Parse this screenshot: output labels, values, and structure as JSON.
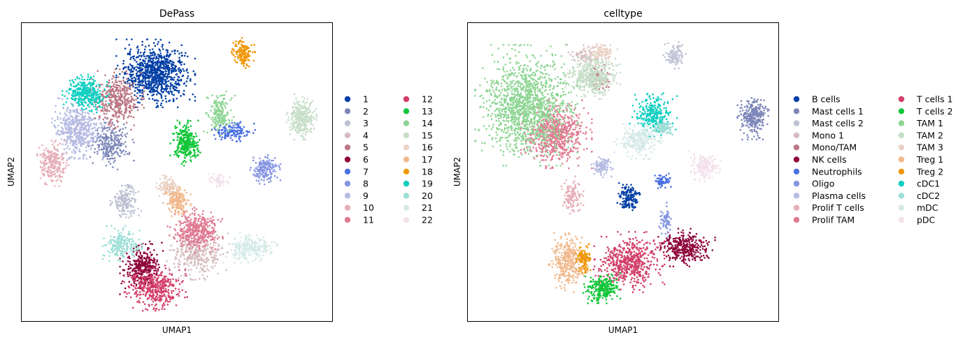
{
  "chart_data": [
    {
      "type": "scatter",
      "title": "DePass",
      "xlabel": "UMAP1",
      "ylabel": "UMAP2",
      "xticks": false,
      "yticks": false,
      "legend_position": "right",
      "legend_columns": 2,
      "legend": [
        {
          "label": "1",
          "color": "#023fa5"
        },
        {
          "label": "2",
          "color": "#7d87b9"
        },
        {
          "label": "3",
          "color": "#bec1d4"
        },
        {
          "label": "4",
          "color": "#d6bcc0"
        },
        {
          "label": "5",
          "color": "#bb7784"
        },
        {
          "label": "6",
          "color": "#8e063b"
        },
        {
          "label": "7",
          "color": "#4a6fe3"
        },
        {
          "label": "8",
          "color": "#8595e1"
        },
        {
          "label": "9",
          "color": "#b5bbe3"
        },
        {
          "label": "10",
          "color": "#e6afb9"
        },
        {
          "label": "11",
          "color": "#e07b91"
        },
        {
          "label": "12",
          "color": "#d33f6a"
        },
        {
          "label": "13",
          "color": "#11c638"
        },
        {
          "label": "14",
          "color": "#8dd593"
        },
        {
          "label": "15",
          "color": "#c6dec7"
        },
        {
          "label": "16",
          "color": "#ead3c6"
        },
        {
          "label": "17",
          "color": "#f0b98d"
        },
        {
          "label": "18",
          "color": "#ef9708"
        },
        {
          "label": "19",
          "color": "#0fcfc0"
        },
        {
          "label": "20",
          "color": "#9cded6"
        },
        {
          "label": "21",
          "color": "#d5eae7"
        },
        {
          "label": "22",
          "color": "#f3e1eb"
        }
      ],
      "clusters": [
        {
          "label": "1",
          "cx": 0.43,
          "cy": 0.84,
          "rx": 0.1,
          "ry": 0.09,
          "n": 900
        },
        {
          "label": "2",
          "cx": 0.28,
          "cy": 0.6,
          "rx": 0.06,
          "ry": 0.07,
          "n": 250
        },
        {
          "label": "3",
          "cx": 0.33,
          "cy": 0.4,
          "rx": 0.04,
          "ry": 0.05,
          "n": 180
        },
        {
          "label": "4",
          "cx": 0.57,
          "cy": 0.22,
          "rx": 0.08,
          "ry": 0.07,
          "n": 350
        },
        {
          "label": "5",
          "cx": 0.3,
          "cy": 0.75,
          "rx": 0.07,
          "ry": 0.08,
          "n": 400
        },
        {
          "label": "6",
          "cx": 0.39,
          "cy": 0.17,
          "rx": 0.06,
          "ry": 0.07,
          "n": 350
        },
        {
          "label": "7",
          "cx": 0.68,
          "cy": 0.64,
          "rx": 0.06,
          "ry": 0.03,
          "n": 150
        },
        {
          "label": "8",
          "cx": 0.79,
          "cy": 0.51,
          "rx": 0.04,
          "ry": 0.04,
          "n": 180
        },
        {
          "label": "9",
          "cx": 0.17,
          "cy": 0.65,
          "rx": 0.07,
          "ry": 0.08,
          "n": 500
        },
        {
          "label": "10",
          "cx": 0.09,
          "cy": 0.53,
          "rx": 0.04,
          "ry": 0.06,
          "n": 250
        },
        {
          "label": "11",
          "cx": 0.56,
          "cy": 0.3,
          "rx": 0.07,
          "ry": 0.06,
          "n": 400
        },
        {
          "label": "12",
          "cx": 0.43,
          "cy": 0.1,
          "rx": 0.08,
          "ry": 0.06,
          "n": 400
        },
        {
          "label": "13",
          "cx": 0.53,
          "cy": 0.6,
          "rx": 0.04,
          "ry": 0.06,
          "n": 300
        },
        {
          "label": "14",
          "cx": 0.64,
          "cy": 0.7,
          "rx": 0.04,
          "ry": 0.06,
          "n": 180
        },
        {
          "label": "15",
          "cx": 0.91,
          "cy": 0.69,
          "rx": 0.04,
          "ry": 0.06,
          "n": 300
        },
        {
          "label": "16",
          "cx": 0.47,
          "cy": 0.45,
          "rx": 0.03,
          "ry": 0.03,
          "n": 120
        },
        {
          "label": "17",
          "cx": 0.5,
          "cy": 0.4,
          "rx": 0.035,
          "ry": 0.04,
          "n": 200
        },
        {
          "label": "18",
          "cx": 0.72,
          "cy": 0.91,
          "rx": 0.03,
          "ry": 0.04,
          "n": 150
        },
        {
          "label": "19",
          "cx": 0.2,
          "cy": 0.77,
          "rx": 0.06,
          "ry": 0.05,
          "n": 350
        },
        {
          "label": "20",
          "cx": 0.32,
          "cy": 0.25,
          "rx": 0.05,
          "ry": 0.05,
          "n": 200
        },
        {
          "label": "21",
          "cx": 0.74,
          "cy": 0.24,
          "rx": 0.07,
          "ry": 0.04,
          "n": 250
        },
        {
          "label": "22",
          "cx": 0.64,
          "cy": 0.47,
          "rx": 0.03,
          "ry": 0.02,
          "n": 60
        }
      ]
    },
    {
      "type": "scatter",
      "title": "celltype",
      "xlabel": "UMAP1",
      "ylabel": "UMAP2",
      "xticks": false,
      "yticks": false,
      "legend_position": "right",
      "legend_columns": 2,
      "legend": [
        {
          "label": "B cells",
          "color": "#023fa5"
        },
        {
          "label": "Mast cells 1",
          "color": "#7d87b9"
        },
        {
          "label": "Mast cells 2",
          "color": "#bec1d4"
        },
        {
          "label": "Mono 1",
          "color": "#d6bcc0"
        },
        {
          "label": "Mono/TAM",
          "color": "#bb7784"
        },
        {
          "label": "NK cells",
          "color": "#8e063b"
        },
        {
          "label": "Neutrophils",
          "color": "#4a6fe3"
        },
        {
          "label": "Oligo",
          "color": "#8595e1"
        },
        {
          "label": "Plasma cells",
          "color": "#b5bbe3"
        },
        {
          "label": "Prolif T cells",
          "color": "#e6afb9"
        },
        {
          "label": "Prolif TAM",
          "color": "#e07b91"
        },
        {
          "label": "T cells 1",
          "color": "#d33f6a"
        },
        {
          "label": "T cells 2",
          "color": "#11c638"
        },
        {
          "label": "TAM 1",
          "color": "#8dd593"
        },
        {
          "label": "TAM 2",
          "color": "#c6dec7"
        },
        {
          "label": "TAM 3",
          "color": "#ead3c6"
        },
        {
          "label": "Treg 1",
          "color": "#f0b98d"
        },
        {
          "label": "Treg 2",
          "color": "#ef9708"
        },
        {
          "label": "cDC1",
          "color": "#0fcfc0"
        },
        {
          "label": "cDC2",
          "color": "#9cded6"
        },
        {
          "label": "mDC",
          "color": "#d5eae7"
        },
        {
          "label": "pDC",
          "color": "#f3e1eb"
        }
      ],
      "clusters": [
        {
          "label": "B cells",
          "cx": 0.52,
          "cy": 0.41,
          "rx": 0.03,
          "ry": 0.04,
          "n": 150
        },
        {
          "label": "Mast cells 1",
          "cx": 0.93,
          "cy": 0.69,
          "rx": 0.04,
          "ry": 0.06,
          "n": 300
        },
        {
          "label": "Mast cells 2",
          "cx": 0.67,
          "cy": 0.9,
          "rx": 0.03,
          "ry": 0.04,
          "n": 100
        },
        {
          "label": "Mono 1",
          "cx": 0.38,
          "cy": 0.9,
          "rx": 0.05,
          "ry": 0.03,
          "n": 80
        },
        {
          "label": "Mono/TAM",
          "cx": 0.42,
          "cy": 0.82,
          "rx": 0.04,
          "ry": 0.04,
          "n": 60
        },
        {
          "label": "NK cells",
          "cx": 0.7,
          "cy": 0.24,
          "rx": 0.08,
          "ry": 0.05,
          "n": 350
        },
        {
          "label": "Neutrophils",
          "cx": 0.63,
          "cy": 0.47,
          "rx": 0.03,
          "ry": 0.02,
          "n": 70
        },
        {
          "label": "Oligo",
          "cx": 0.64,
          "cy": 0.33,
          "rx": 0.02,
          "ry": 0.05,
          "n": 60
        },
        {
          "label": "Plasma cells",
          "cx": 0.43,
          "cy": 0.52,
          "rx": 0.03,
          "ry": 0.03,
          "n": 100
        },
        {
          "label": "Prolif T cells",
          "cx": 0.33,
          "cy": 0.42,
          "rx": 0.03,
          "ry": 0.05,
          "n": 120
        },
        {
          "label": "Prolif TAM",
          "cx": 0.28,
          "cy": 0.63,
          "rx": 0.09,
          "ry": 0.09,
          "n": 700
        },
        {
          "label": "T cells 1",
          "cx": 0.52,
          "cy": 0.19,
          "rx": 0.09,
          "ry": 0.08,
          "n": 550
        },
        {
          "label": "T cells 2",
          "cx": 0.43,
          "cy": 0.1,
          "rx": 0.05,
          "ry": 0.04,
          "n": 250
        },
        {
          "label": "TAM 1",
          "cx": 0.18,
          "cy": 0.73,
          "rx": 0.13,
          "ry": 0.16,
          "n": 1300
        },
        {
          "label": "TAM 2",
          "cx": 0.4,
          "cy": 0.83,
          "rx": 0.07,
          "ry": 0.06,
          "n": 450
        },
        {
          "label": "TAM 3",
          "cx": 0.43,
          "cy": 0.91,
          "rx": 0.04,
          "ry": 0.03,
          "n": 100
        },
        {
          "label": "Treg 1",
          "cx": 0.32,
          "cy": 0.19,
          "rx": 0.05,
          "ry": 0.08,
          "n": 350
        },
        {
          "label": "Treg 2",
          "cx": 0.37,
          "cy": 0.2,
          "rx": 0.02,
          "ry": 0.04,
          "n": 120
        },
        {
          "label": "cDC1",
          "cx": 0.6,
          "cy": 0.7,
          "rx": 0.06,
          "ry": 0.06,
          "n": 250
        },
        {
          "label": "cDC2",
          "cx": 0.63,
          "cy": 0.65,
          "rx": 0.03,
          "ry": 0.02,
          "n": 100
        },
        {
          "label": "mDC",
          "cx": 0.55,
          "cy": 0.61,
          "rx": 0.06,
          "ry": 0.05,
          "n": 250
        },
        {
          "label": "pDC",
          "cx": 0.77,
          "cy": 0.52,
          "rx": 0.04,
          "ry": 0.04,
          "n": 180
        }
      ]
    }
  ]
}
